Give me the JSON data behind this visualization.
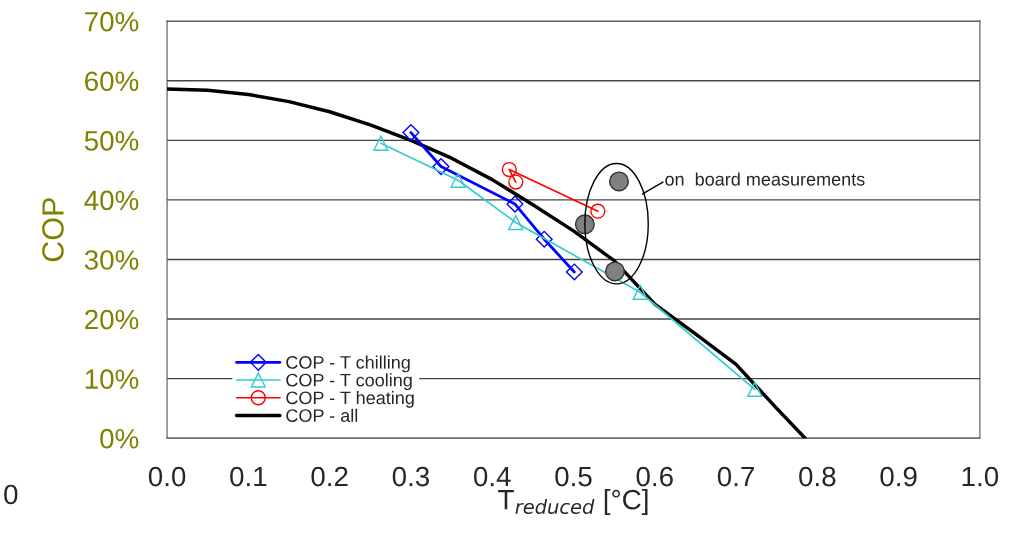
{
  "chart_data": {
    "type": "line",
    "xlabel": "T$_{reduced}$ [°C]",
    "ylabel": "COP",
    "xlim": [
      0.0,
      1.0
    ],
    "xticks": [
      {
        "value": 0.0,
        "label": "0.0"
      },
      {
        "value": 0.1,
        "label": "0.1"
      },
      {
        "value": 0.2,
        "label": "0.2"
      },
      {
        "value": 0.3,
        "label": "0.3"
      },
      {
        "value": 0.4,
        "label": "0.4"
      },
      {
        "value": 0.5,
        "label": "0.5"
      },
      {
        "value": 0.6,
        "label": "0.6"
      },
      {
        "value": 0.7,
        "label": "0.7"
      },
      {
        "value": 0.8,
        "label": "0.8"
      },
      {
        "value": 0.9,
        "label": "0.9"
      },
      {
        "value": 1.0,
        "label": "1.0"
      }
    ],
    "ylim": [
      0,
      70
    ],
    "yticks": [
      {
        "value": 0,
        "label": "0%"
      },
      {
        "value": 10,
        "label": "10%"
      },
      {
        "value": 20,
        "label": "20%"
      },
      {
        "value": 30,
        "label": "30%"
      },
      {
        "value": 40,
        "label": "40%"
      },
      {
        "value": 50,
        "label": "50%"
      },
      {
        "value": 60,
        "label": "60%"
      },
      {
        "value": 70,
        "label": "70%"
      }
    ],
    "grid": "y",
    "legend": "bottom left",
    "series": [
      {
        "name": "COP - T chilling",
        "marker": "diamond",
        "color": "#0000ff",
        "x": [
          0.3,
          0.337,
          0.428,
          0.464,
          0.501
        ],
        "values": [
          51.3,
          45.6,
          39.3,
          33.4,
          27.9
        ]
      },
      {
        "name": "COP - T cooling",
        "marker": "triangle",
        "color": "#33cccc",
        "x": [
          0.263,
          0.358,
          0.429,
          0.582,
          0.723
        ],
        "values": [
          49.5,
          43.3,
          36.2,
          24.5,
          8.2
        ]
      },
      {
        "name": "COP - T heating",
        "marker": "circle",
        "color": "#ff0000",
        "x": [
          0.429,
          0.421,
          0.53
        ],
        "values": [
          43.0,
          45.1,
          38.1
        ]
      },
      {
        "name": "COP - all",
        "marker": "none",
        "color": "#000000",
        "x": [
          0.0,
          0.05,
          0.1,
          0.15,
          0.2,
          0.25,
          0.3,
          0.35,
          0.4,
          0.45,
          0.5,
          0.55,
          0.6,
          0.65,
          0.7,
          0.75,
          0.785
        ],
        "values": [
          58.6,
          58.4,
          57.7,
          56.5,
          54.8,
          52.6,
          50.0,
          47.0,
          43.4,
          39.2,
          34.8,
          29.8,
          22.5,
          17.5,
          12.4,
          5.0,
          0.0
        ]
      },
      {
        "type": "scatter",
        "marker": "circle",
        "color": "#808080",
        "x": [
          0.556,
          0.514,
          0.551
        ],
        "values": [
          43.1,
          35.9,
          28.0
        ]
      }
    ],
    "annotations": [
      "on  board measurements",
      "0"
    ]
  }
}
